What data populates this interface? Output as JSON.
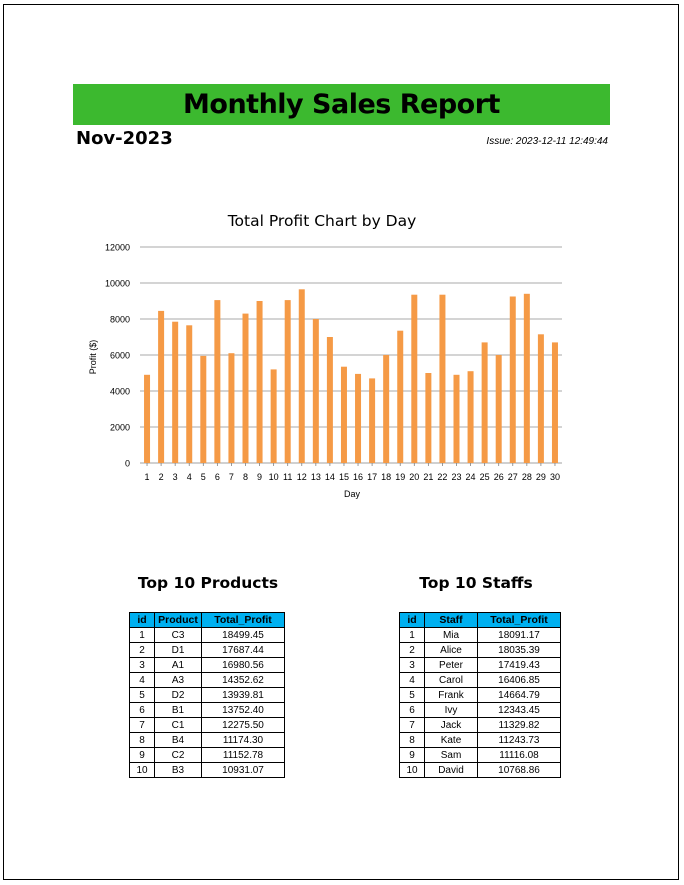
{
  "report": {
    "title": "Monthly Sales Report",
    "month": "Nov-2023",
    "issue": "Issue: 2023-12-11 12:49:44"
  },
  "chart_data": {
    "type": "bar",
    "title": "Total Profit Chart by Day",
    "xlabel": "Day",
    "ylabel": "Profit ($)",
    "ylim": [
      0,
      12000
    ],
    "yticks": [
      0,
      2000,
      4000,
      6000,
      8000,
      10000,
      12000
    ],
    "grid": true,
    "legend": "none",
    "bar_color": "#f59a46",
    "categories": [
      "1",
      "2",
      "3",
      "4",
      "5",
      "6",
      "7",
      "8",
      "9",
      "10",
      "11",
      "12",
      "13",
      "14",
      "15",
      "16",
      "17",
      "18",
      "19",
      "20",
      "21",
      "22",
      "23",
      "24",
      "25",
      "26",
      "27",
      "28",
      "29",
      "30"
    ],
    "values": [
      4900,
      8450,
      7850,
      7650,
      5950,
      9050,
      6100,
      8300,
      9000,
      5200,
      9050,
      9650,
      8000,
      7000,
      5350,
      4950,
      4700,
      6000,
      7350,
      9350,
      5000,
      9350,
      4900,
      5100,
      6700,
      6000,
      9250,
      9400,
      7150,
      6700
    ]
  },
  "products": {
    "title": "Top 10 Products",
    "headers": [
      "id",
      "Product",
      "Total_Profit"
    ],
    "rows": [
      [
        "1",
        "C3",
        "18499.45"
      ],
      [
        "2",
        "D1",
        "17687.44"
      ],
      [
        "3",
        "A1",
        "16980.56"
      ],
      [
        "4",
        "A3",
        "14352.62"
      ],
      [
        "5",
        "D2",
        "13939.81"
      ],
      [
        "6",
        "B1",
        "13752.40"
      ],
      [
        "7",
        "C1",
        "12275.50"
      ],
      [
        "8",
        "B4",
        "11174.30"
      ],
      [
        "9",
        "C2",
        "11152.78"
      ],
      [
        "10",
        "B3",
        "10931.07"
      ]
    ]
  },
  "staffs": {
    "title": "Top 10 Staffs",
    "headers": [
      "id",
      "Staff",
      "Total_Profit"
    ],
    "rows": [
      [
        "1",
        "Mia",
        "18091.17"
      ],
      [
        "2",
        "Alice",
        "18035.39"
      ],
      [
        "3",
        "Peter",
        "17419.43"
      ],
      [
        "4",
        "Carol",
        "16406.85"
      ],
      [
        "5",
        "Frank",
        "14664.79"
      ],
      [
        "6",
        "Ivy",
        "12343.45"
      ],
      [
        "7",
        "Jack",
        "11329.82"
      ],
      [
        "8",
        "Kate",
        "11243.73"
      ],
      [
        "9",
        "Sam",
        "11116.08"
      ],
      [
        "10",
        "David",
        "10768.86"
      ]
    ]
  }
}
